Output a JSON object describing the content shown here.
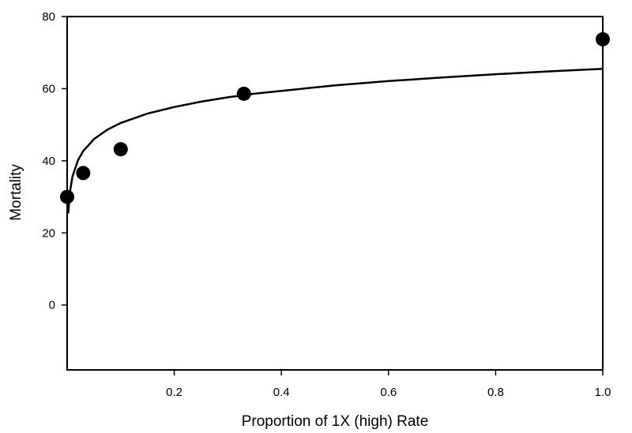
{
  "chart_data": {
    "type": "scatter",
    "title": "",
    "xlabel": "Proportion of 1X (high) Rate",
    "ylabel": "Mortality",
    "xlim": [
      0.0,
      1.0
    ],
    "ylim": [
      -18,
      80
    ],
    "x_ticks": [
      0.2,
      0.4,
      0.6,
      0.8,
      1.0
    ],
    "x_tick_labels": [
      "0.2",
      "0.4",
      "0.6",
      "0.8",
      "1.0"
    ],
    "y_ticks": [
      0,
      20,
      40,
      60,
      80
    ],
    "y_tick_labels": [
      "0",
      "20",
      "40",
      "60",
      "80"
    ],
    "grid": false,
    "legend": "none",
    "series": [
      {
        "kind": "points",
        "x": [
          0.0,
          0.03,
          0.1,
          0.33,
          1.0
        ],
        "y": [
          30.0,
          36.6,
          43.2,
          58.6,
          73.7
        ]
      },
      {
        "kind": "fitted-curve",
        "model": "logarithmic",
        "x": [
          0.002,
          0.005,
          0.01,
          0.02,
          0.03,
          0.05,
          0.075,
          0.1,
          0.15,
          0.2,
          0.25,
          0.3,
          0.35,
          0.4,
          0.5,
          0.6,
          0.7,
          0.8,
          0.9,
          1.0
        ],
        "y": [
          25.4,
          31.2,
          35.7,
          40.1,
          42.7,
          46.0,
          48.6,
          50.5,
          53.1,
          54.9,
          56.4,
          57.6,
          58.6,
          59.4,
          60.9,
          62.1,
          63.1,
          64.0,
          64.8,
          65.5
        ]
      }
    ],
    "colors": {
      "points": "#000000",
      "curve": "#000000",
      "axes": "#000000"
    }
  }
}
